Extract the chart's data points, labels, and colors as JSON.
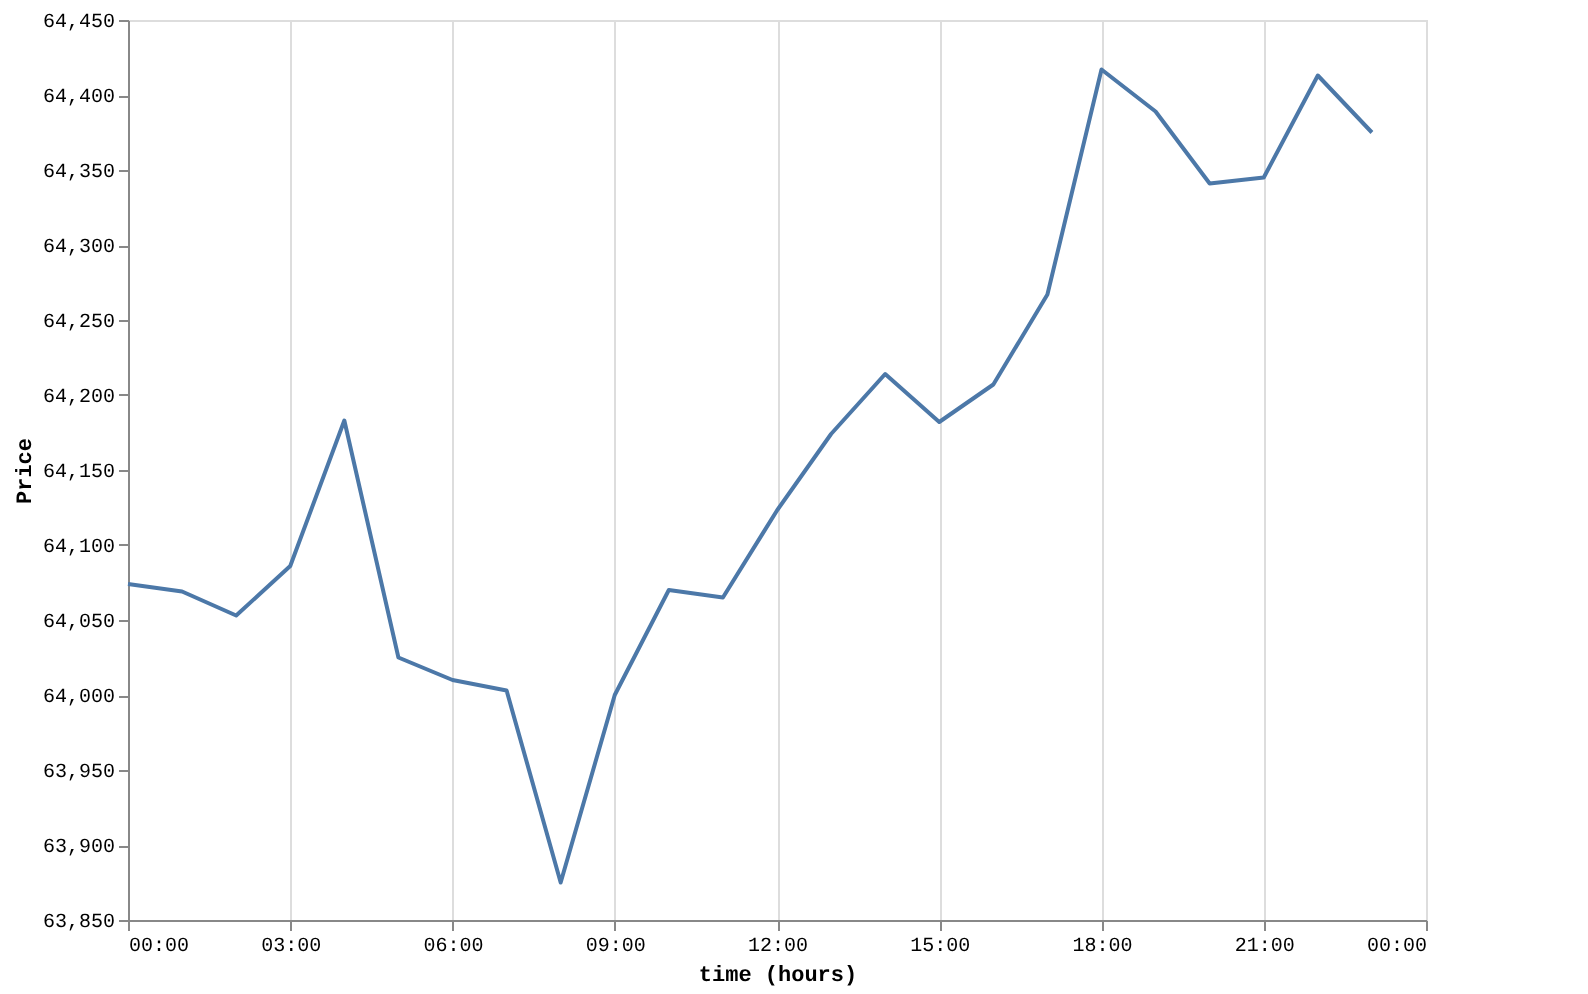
{
  "chart_data": {
    "type": "line",
    "xlabel": "time (hours)",
    "ylabel": "Price",
    "x": [
      0,
      1,
      2,
      3,
      4,
      5,
      6,
      7,
      8,
      9,
      10,
      11,
      12,
      13,
      14,
      15,
      16,
      17,
      18,
      19,
      20,
      21,
      22,
      23
    ],
    "series": [
      {
        "color": "#4c78a8",
        "values": [
          64074,
          64069,
          64053,
          64086,
          64183,
          64025,
          64010,
          64003,
          63875,
          64000,
          64070,
          64065,
          64123,
          64174,
          64214,
          64182,
          64207,
          64267,
          64417,
          64389,
          64341,
          64345,
          64413,
          64375
        ]
      }
    ],
    "xlim": [
      0,
      24
    ],
    "xticks": [
      {
        "value": 0,
        "label": "00:00"
      },
      {
        "value": 3,
        "label": "03:00"
      },
      {
        "value": 6,
        "label": "06:00"
      },
      {
        "value": 9,
        "label": "09:00"
      },
      {
        "value": 12,
        "label": "12:00"
      },
      {
        "value": 15,
        "label": "15:00"
      },
      {
        "value": 18,
        "label": "18:00"
      },
      {
        "value": 21,
        "label": "21:00"
      },
      {
        "value": 24,
        "label": "00:00"
      }
    ],
    "ylim": [
      63850,
      64450
    ],
    "yticks": [
      {
        "value": 63850,
        "label": "63,850"
      },
      {
        "value": 63900,
        "label": "63,900"
      },
      {
        "value": 63950,
        "label": "63,950"
      },
      {
        "value": 64000,
        "label": "64,000"
      },
      {
        "value": 64050,
        "label": "64,050"
      },
      {
        "value": 64100,
        "label": "64,100"
      },
      {
        "value": 64150,
        "label": "64,150"
      },
      {
        "value": 64200,
        "label": "64,200"
      },
      {
        "value": 64250,
        "label": "64,250"
      },
      {
        "value": 64300,
        "label": "64,300"
      },
      {
        "value": 64350,
        "label": "64,350"
      },
      {
        "value": 64400,
        "label": "64,400"
      },
      {
        "value": 64450,
        "label": "64,450"
      }
    ],
    "grid": "x",
    "marker": "none",
    "line_style": "solid"
  }
}
